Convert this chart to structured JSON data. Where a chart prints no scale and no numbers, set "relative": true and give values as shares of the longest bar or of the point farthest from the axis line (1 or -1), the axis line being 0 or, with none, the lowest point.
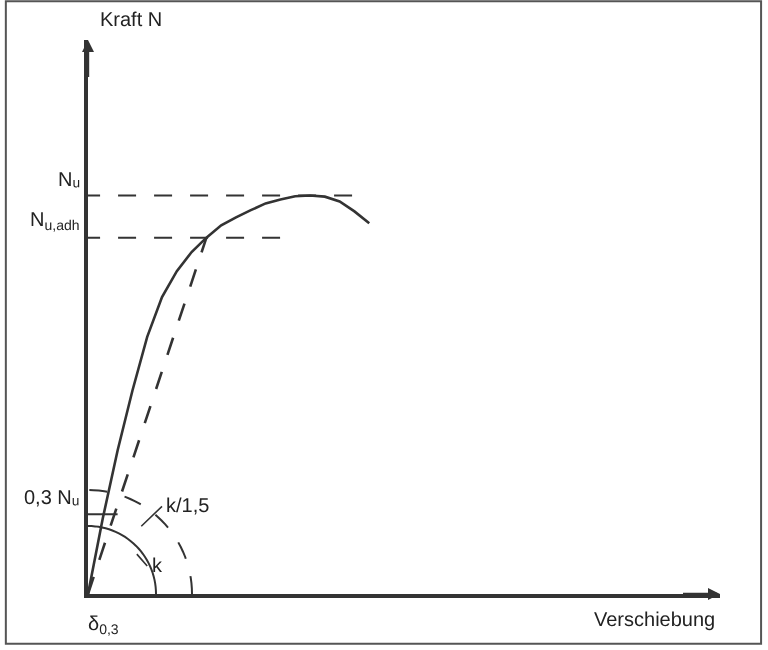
{
  "chart_data": {
    "type": "line",
    "relative": true,
    "categories": [
      null,
      null,
      null,
      null,
      null,
      null,
      null,
      null,
      null,
      null,
      null,
      null,
      null,
      null,
      null,
      null,
      null,
      null,
      null,
      null
    ],
    "series": [
      {
        "color": "#333333",
        "line_style": "solid",
        "values": [
          0,
          0.19,
          0.36,
          0.51,
          0.645,
          0.745,
          0.81,
          0.858,
          0.894,
          0.925,
          0.945,
          0.963,
          0.98,
          0.99,
          0.998,
          1,
          0.997,
          0.985,
          0.96,
          0.93
        ]
      },
      {
        "color": "#333333",
        "line_style": "dashed",
        "values": [
          0,
          0.112,
          0.224,
          0.335,
          0.447,
          0.559,
          0.671,
          0.782,
          0.894,
          null,
          null,
          null,
          null,
          null,
          null,
          null,
          null,
          null,
          null,
          null
        ]
      }
    ],
    "ref_lines": [
      {
        "axis": "y",
        "value": 1,
        "label": "Nᵤ",
        "line_style": "dashed",
        "color": "#333333"
      },
      {
        "axis": "y",
        "value": 0.894,
        "label": "N$_{u,adh}$",
        "line_style": "dashed",
        "color": "#333333"
      },
      {
        "axis": "y",
        "value": 0.2,
        "label": "0,3 Nᵤ",
        "line_style": "solid",
        "color": "#333333"
      }
    ],
    "annotations": [
      "k/1,5",
      "k",
      "δ$_{0,3}$",
      "Kraft N",
      "Verschiebung"
    ]
  }
}
